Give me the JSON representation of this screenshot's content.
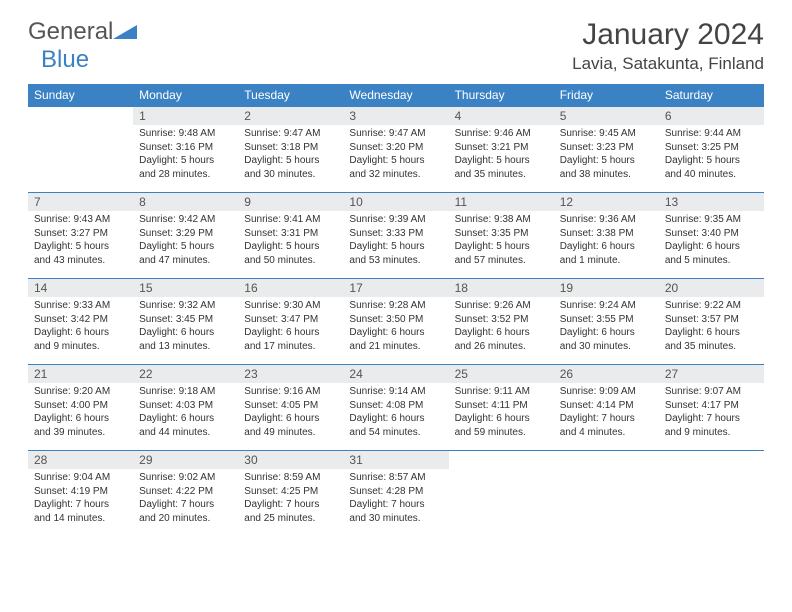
{
  "logo": {
    "general": "General",
    "blue": "Blue"
  },
  "title": "January 2024",
  "location": "Lavia, Satakunta, Finland",
  "colors": {
    "header_bg": "#3b82c4",
    "header_text": "#ffffff",
    "daynum_bg": "#e9ebec",
    "border": "#3b82c4",
    "text": "#333333",
    "logo_gray": "#555555",
    "logo_blue": "#3b82c4"
  },
  "weekdays": [
    "Sunday",
    "Monday",
    "Tuesday",
    "Wednesday",
    "Thursday",
    "Friday",
    "Saturday"
  ],
  "weeks": [
    [
      {
        "n": "",
        "sr": "",
        "ss": "",
        "dl": ""
      },
      {
        "n": "1",
        "sr": "9:48 AM",
        "ss": "3:16 PM",
        "dl": "5 hours and 28 minutes."
      },
      {
        "n": "2",
        "sr": "9:47 AM",
        "ss": "3:18 PM",
        "dl": "5 hours and 30 minutes."
      },
      {
        "n": "3",
        "sr": "9:47 AM",
        "ss": "3:20 PM",
        "dl": "5 hours and 32 minutes."
      },
      {
        "n": "4",
        "sr": "9:46 AM",
        "ss": "3:21 PM",
        "dl": "5 hours and 35 minutes."
      },
      {
        "n": "5",
        "sr": "9:45 AM",
        "ss": "3:23 PM",
        "dl": "5 hours and 38 minutes."
      },
      {
        "n": "6",
        "sr": "9:44 AM",
        "ss": "3:25 PM",
        "dl": "5 hours and 40 minutes."
      }
    ],
    [
      {
        "n": "7",
        "sr": "9:43 AM",
        "ss": "3:27 PM",
        "dl": "5 hours and 43 minutes."
      },
      {
        "n": "8",
        "sr": "9:42 AM",
        "ss": "3:29 PM",
        "dl": "5 hours and 47 minutes."
      },
      {
        "n": "9",
        "sr": "9:41 AM",
        "ss": "3:31 PM",
        "dl": "5 hours and 50 minutes."
      },
      {
        "n": "10",
        "sr": "9:39 AM",
        "ss": "3:33 PM",
        "dl": "5 hours and 53 minutes."
      },
      {
        "n": "11",
        "sr": "9:38 AM",
        "ss": "3:35 PM",
        "dl": "5 hours and 57 minutes."
      },
      {
        "n": "12",
        "sr": "9:36 AM",
        "ss": "3:38 PM",
        "dl": "6 hours and 1 minute."
      },
      {
        "n": "13",
        "sr": "9:35 AM",
        "ss": "3:40 PM",
        "dl": "6 hours and 5 minutes."
      }
    ],
    [
      {
        "n": "14",
        "sr": "9:33 AM",
        "ss": "3:42 PM",
        "dl": "6 hours and 9 minutes."
      },
      {
        "n": "15",
        "sr": "9:32 AM",
        "ss": "3:45 PM",
        "dl": "6 hours and 13 minutes."
      },
      {
        "n": "16",
        "sr": "9:30 AM",
        "ss": "3:47 PM",
        "dl": "6 hours and 17 minutes."
      },
      {
        "n": "17",
        "sr": "9:28 AM",
        "ss": "3:50 PM",
        "dl": "6 hours and 21 minutes."
      },
      {
        "n": "18",
        "sr": "9:26 AM",
        "ss": "3:52 PM",
        "dl": "6 hours and 26 minutes."
      },
      {
        "n": "19",
        "sr": "9:24 AM",
        "ss": "3:55 PM",
        "dl": "6 hours and 30 minutes."
      },
      {
        "n": "20",
        "sr": "9:22 AM",
        "ss": "3:57 PM",
        "dl": "6 hours and 35 minutes."
      }
    ],
    [
      {
        "n": "21",
        "sr": "9:20 AM",
        "ss": "4:00 PM",
        "dl": "6 hours and 39 minutes."
      },
      {
        "n": "22",
        "sr": "9:18 AM",
        "ss": "4:03 PM",
        "dl": "6 hours and 44 minutes."
      },
      {
        "n": "23",
        "sr": "9:16 AM",
        "ss": "4:05 PM",
        "dl": "6 hours and 49 minutes."
      },
      {
        "n": "24",
        "sr": "9:14 AM",
        "ss": "4:08 PM",
        "dl": "6 hours and 54 minutes."
      },
      {
        "n": "25",
        "sr": "9:11 AM",
        "ss": "4:11 PM",
        "dl": "6 hours and 59 minutes."
      },
      {
        "n": "26",
        "sr": "9:09 AM",
        "ss": "4:14 PM",
        "dl": "7 hours and 4 minutes."
      },
      {
        "n": "27",
        "sr": "9:07 AM",
        "ss": "4:17 PM",
        "dl": "7 hours and 9 minutes."
      }
    ],
    [
      {
        "n": "28",
        "sr": "9:04 AM",
        "ss": "4:19 PM",
        "dl": "7 hours and 14 minutes."
      },
      {
        "n": "29",
        "sr": "9:02 AM",
        "ss": "4:22 PM",
        "dl": "7 hours and 20 minutes."
      },
      {
        "n": "30",
        "sr": "8:59 AM",
        "ss": "4:25 PM",
        "dl": "7 hours and 25 minutes."
      },
      {
        "n": "31",
        "sr": "8:57 AM",
        "ss": "4:28 PM",
        "dl": "7 hours and 30 minutes."
      },
      {
        "n": "",
        "sr": "",
        "ss": "",
        "dl": ""
      },
      {
        "n": "",
        "sr": "",
        "ss": "",
        "dl": ""
      },
      {
        "n": "",
        "sr": "",
        "ss": "",
        "dl": ""
      }
    ]
  ],
  "labels": {
    "sunrise": "Sunrise:",
    "sunset": "Sunset:",
    "daylight": "Daylight:"
  }
}
